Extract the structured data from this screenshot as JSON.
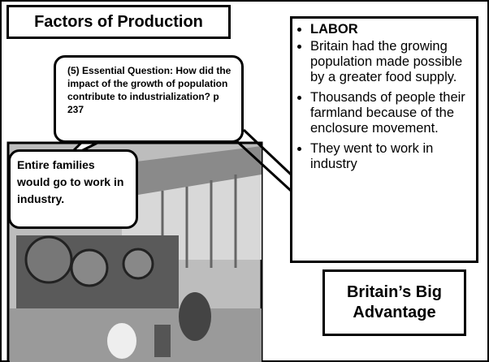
{
  "title": "Factors of Production",
  "question": "(5) Essential Question: How did the impact of the growth of population contribute to industrialization?  p 237",
  "callout": "Entire families would go to work in industry.",
  "bullets": [
    "LABOR",
    " Britain had the growing population made possible by a greater food supply.",
    "Thousands of people their farmland because of the enclosure movement.",
    "They went to work in industry"
  ],
  "advantage": "Britain’s Big Advantage"
}
